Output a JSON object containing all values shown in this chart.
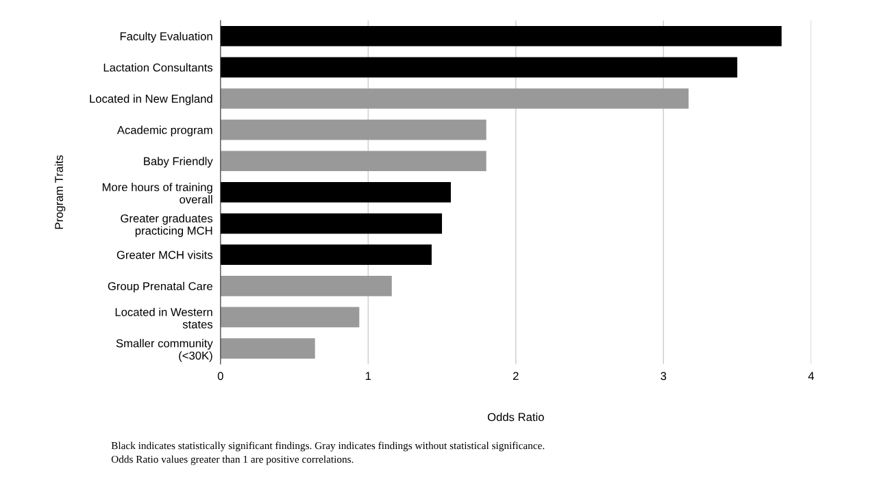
{
  "chart_data": {
    "type": "bar",
    "orientation": "horizontal",
    "categories": [
      "Faculty Evaluation",
      "Lactation Consultants",
      "Located in New England",
      "Academic program",
      "Baby Friendly",
      "More hours of training\noverall",
      "Greater graduates\npracticing MCH",
      "Greater MCH visits",
      "Group Prenatal Care",
      "Located in Western\nstates",
      "Smaller community\n(<30K)"
    ],
    "values": [
      3.8,
      3.5,
      3.17,
      1.8,
      1.8,
      1.56,
      1.5,
      1.43,
      1.16,
      0.94,
      0.64
    ],
    "colors": [
      "#000000",
      "#000000",
      "#999999",
      "#999999",
      "#999999",
      "#000000",
      "#000000",
      "#000000",
      "#999999",
      "#999999",
      "#999999"
    ],
    "xlim": [
      0,
      4
    ],
    "xticks": [
      0,
      1,
      2,
      3,
      4
    ],
    "grid": "x",
    "xlabel": "Odds Ratio",
    "ylabel": "Program Traits",
    "annotations": [
      "Black indicates statistically significant findings. Gray indicates findings without statistical significance.",
      "Odds Ratio values greater than 1 are positive correlations."
    ]
  }
}
